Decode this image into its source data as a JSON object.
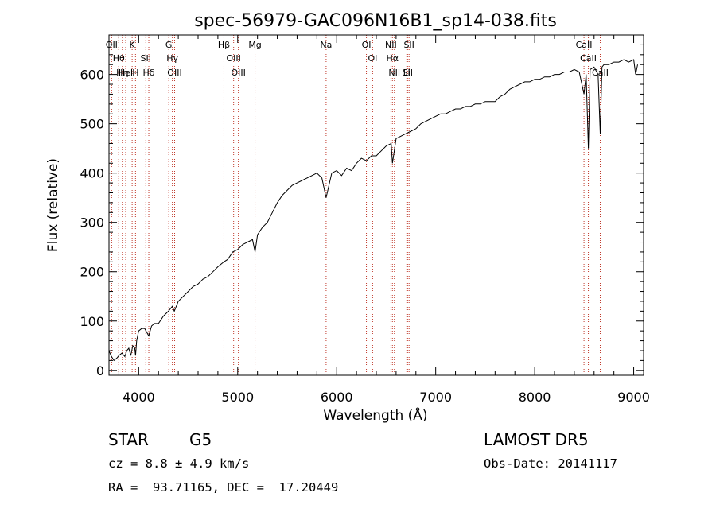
{
  "chart_data": {
    "type": "line",
    "title": "spec-56979-GAC096N16B1_sp14-038.fits",
    "xlabel": "Wavelength (Å)",
    "ylabel": "Flux (relative)",
    "xlim": [
      3700,
      9100
    ],
    "ylim": [
      -10,
      680
    ],
    "xticks": [
      4000,
      5000,
      6000,
      7000,
      8000,
      9000
    ],
    "yticks": [
      0,
      100,
      200,
      300,
      400,
      500,
      600
    ],
    "grid": false,
    "line_color": "#000000",
    "marker_color": "#c0392b",
    "series": [
      {
        "x": [
          3700,
          3720,
          3750,
          3780,
          3800,
          3830,
          3860,
          3880,
          3900,
          3920,
          3940,
          3960,
          3968,
          3980,
          4000,
          4030,
          4060,
          4102,
          4130,
          4160,
          4200,
          4250,
          4300,
          4340,
          4360,
          4400,
          4450,
          4500,
          4550,
          4600,
          4650,
          4700,
          4750,
          4800,
          4861,
          4900,
          4950,
          5000,
          5050,
          5100,
          5150,
          5175,
          5200,
          5250,
          5300,
          5350,
          5400,
          5450,
          5500,
          5550,
          5600,
          5650,
          5700,
          5750,
          5800,
          5850,
          5893,
          5950,
          6000,
          6050,
          6100,
          6150,
          6200,
          6250,
          6300,
          6350,
          6400,
          6450,
          6500,
          6550,
          6563,
          6600,
          6650,
          6700,
          6750,
          6800,
          6850,
          6900,
          6950,
          7000,
          7050,
          7100,
          7150,
          7200,
          7250,
          7300,
          7350,
          7400,
          7450,
          7500,
          7550,
          7600,
          7650,
          7700,
          7750,
          7800,
          7850,
          7900,
          7950,
          8000,
          8050,
          8100,
          8150,
          8200,
          8250,
          8300,
          8350,
          8400,
          8450,
          8498,
          8520,
          8542,
          8560,
          8600,
          8640,
          8662,
          8680,
          8700,
          8750,
          8800,
          8850,
          8900,
          8950,
          9000,
          9020,
          9040
        ],
        "y": [
          40,
          30,
          20,
          25,
          30,
          35,
          28,
          40,
          45,
          30,
          50,
          45,
          30,
          60,
          80,
          85,
          85,
          70,
          90,
          95,
          95,
          110,
          120,
          130,
          120,
          140,
          150,
          160,
          170,
          175,
          185,
          190,
          200,
          210,
          220,
          225,
          240,
          245,
          255,
          260,
          265,
          240,
          275,
          290,
          300,
          320,
          340,
          355,
          365,
          375,
          380,
          385,
          390,
          395,
          400,
          390,
          350,
          400,
          405,
          395,
          410,
          405,
          420,
          430,
          425,
          435,
          435,
          445,
          455,
          460,
          420,
          470,
          475,
          480,
          485,
          490,
          500,
          505,
          510,
          515,
          520,
          520,
          525,
          530,
          530,
          535,
          535,
          540,
          540,
          545,
          545,
          545,
          555,
          560,
          570,
          575,
          580,
          585,
          585,
          590,
          590,
          595,
          595,
          600,
          600,
          605,
          605,
          610,
          605,
          560,
          600,
          450,
          610,
          615,
          600,
          480,
          615,
          620,
          620,
          625,
          625,
          630,
          625,
          630,
          600,
          620
        ]
      }
    ],
    "lines": [
      {
        "x": 3727,
        "top": "OII",
        "bottom": ""
      },
      {
        "x": 3798,
        "top": "Hθ",
        "bottom": "OII"
      },
      {
        "x": 3835,
        "top": "Hη",
        "bottom": ""
      },
      {
        "x": 3869,
        "top": "HeI",
        "bottom": ""
      },
      {
        "x": 3934,
        "top": "K",
        "bottom": ""
      },
      {
        "x": 3968,
        "top": "H",
        "bottom": ""
      },
      {
        "x": 4072,
        "top": "SII",
        "bottom": ""
      },
      {
        "x": 4102,
        "top": "Hδ",
        "bottom": ""
      },
      {
        "x": 4304,
        "top": "G",
        "bottom": ""
      },
      {
        "x": 4340,
        "top": "Hγ",
        "bottom": ""
      },
      {
        "x": 4363,
        "top": "OIII",
        "bottom": ""
      },
      {
        "x": 4861,
        "top": "Hβ",
        "bottom": ""
      },
      {
        "x": 4959,
        "top": "OIII",
        "bottom": ""
      },
      {
        "x": 5007,
        "top": "OIII",
        "bottom": ""
      },
      {
        "x": 5175,
        "top": "Mg",
        "bottom": ""
      },
      {
        "x": 5893,
        "top": "Na",
        "bottom": ""
      },
      {
        "x": 6300,
        "top": "OI",
        "bottom": ""
      },
      {
        "x": 6363,
        "top": "OI",
        "bottom": ""
      },
      {
        "x": 6548,
        "top": "NII",
        "bottom": ""
      },
      {
        "x": 6563,
        "top": "Hα",
        "bottom": ""
      },
      {
        "x": 6583,
        "top": "NII",
        "bottom": ""
      },
      {
        "x": 6708,
        "top": "Li",
        "bottom": ""
      },
      {
        "x": 6716,
        "top": "SII",
        "bottom": ""
      },
      {
        "x": 6731,
        "top": "SII",
        "bottom": ""
      },
      {
        "x": 8498,
        "top": "CaII",
        "bottom": ""
      },
      {
        "x": 8542,
        "top": "CaII",
        "bottom": ""
      },
      {
        "x": 8662,
        "top": "CaII",
        "bottom": ""
      }
    ]
  },
  "info": {
    "object_type": "STAR",
    "subclass": "G5",
    "survey": "LAMOST DR5",
    "cz": "cz = 8.8 ± 4.9 km/s",
    "obs_date": "Obs-Date: 20141117",
    "coords": "RA =  93.71165, DEC =  17.20449"
  }
}
